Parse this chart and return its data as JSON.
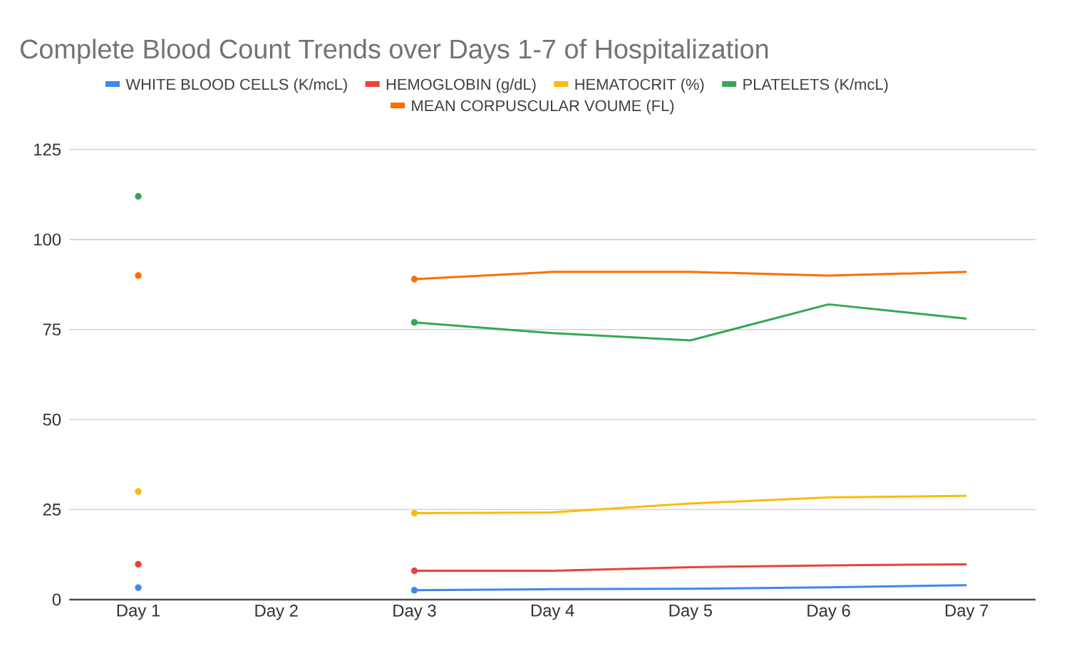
{
  "chart_data": {
    "type": "line",
    "title": "Complete Blood Count Trends over Days 1-7 of Hospitalization",
    "categories": [
      "Day 1",
      "Day 2",
      "Day 3",
      "Day 4",
      "Day 5",
      "Day 6",
      "Day 7"
    ],
    "series": [
      {
        "name": "WHITE BLOOD CELLS (K/mcL)",
        "color": "#4285f4",
        "values": [
          3.3,
          null,
          2.6,
          2.9,
          3.0,
          3.4,
          4.0
        ]
      },
      {
        "name": "HEMOGLOBIN (g/dL)",
        "color": "#ea4335",
        "values": [
          9.8,
          null,
          8.0,
          8.0,
          9.0,
          9.5,
          9.8
        ]
      },
      {
        "name": "HEMATOCRIT (%)",
        "color": "#fbbc04",
        "values": [
          30,
          null,
          24,
          24.2,
          26.7,
          28.4,
          28.8
        ]
      },
      {
        "name": "PLATELETS (K/mcL)",
        "color": "#34a853",
        "values": [
          112,
          null,
          77,
          74,
          72,
          82,
          78
        ]
      },
      {
        "name": "MEAN CORPUSCULAR VOUME (FL)",
        "color": "#ff6d01",
        "values": [
          90,
          null,
          89,
          91,
          91,
          90,
          91
        ]
      }
    ],
    "ylim": [
      0,
      125
    ],
    "yticks": [
      0,
      25,
      50,
      75,
      100,
      125
    ],
    "grid": "y",
    "legend": "top"
  }
}
